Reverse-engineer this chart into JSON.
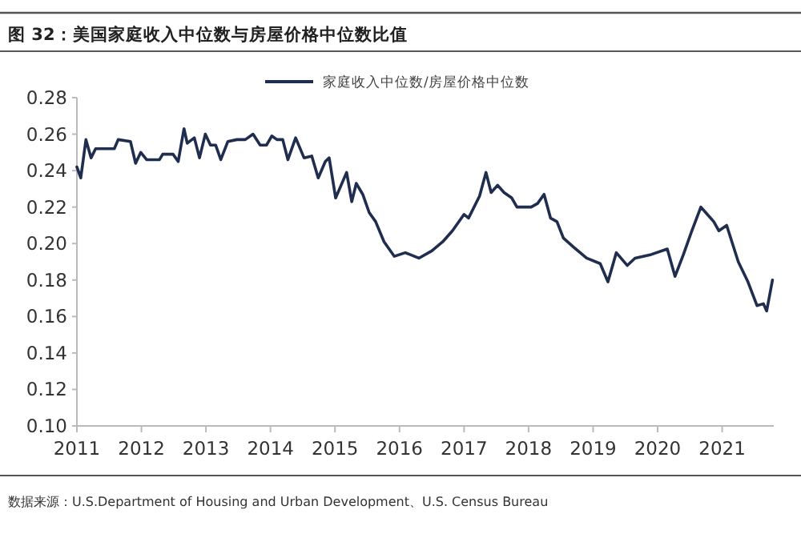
{
  "chart_data": {
    "type": "line",
    "title": "图 32：美国家庭收入中位数与房屋价格中位数比值",
    "annotations": [
      "数据来源：U.S.Department of Housing and Urban Development、U.S. Census Bureau"
    ],
    "legend": "top",
    "marker": "none",
    "line_style": "solid",
    "grid": false,
    "xlim": [
      2011,
      2021.8
    ],
    "xticks": [
      2011,
      2012,
      2013,
      2014,
      2015,
      2016,
      2017,
      2018,
      2019,
      2020,
      2021
    ],
    "ylim": [
      0.1,
      0.28
    ],
    "yticks": [
      {
        "value": 0.1,
        "label": "0.10"
      },
      {
        "value": 0.12,
        "label": "0.12"
      },
      {
        "value": 0.14,
        "label": "0.14"
      },
      {
        "value": 0.16,
        "label": "0.16"
      },
      {
        "value": 0.18,
        "label": "0.18"
      },
      {
        "value": 0.2,
        "label": "0.20"
      },
      {
        "value": 0.22,
        "label": "0.22"
      },
      {
        "value": 0.24,
        "label": "0.24"
      },
      {
        "value": 0.26,
        "label": "0.26"
      },
      {
        "value": 0.28,
        "label": "0.28"
      }
    ],
    "series": [
      {
        "name": "家庭收入中位数/房屋价格中位数",
        "color": "#1f2d4e",
        "x": [
          2011.0,
          2011.06,
          2011.14,
          2011.22,
          2011.29,
          2011.58,
          2011.64,
          2011.83,
          2011.91,
          2011.99,
          2012.08,
          2012.28,
          2012.33,
          2012.49,
          2012.57,
          2012.66,
          2012.71,
          2012.82,
          2012.9,
          2012.99,
          2013.07,
          2013.15,
          2013.23,
          2013.34,
          2013.48,
          2013.61,
          2013.73,
          2013.84,
          2013.94,
          2014.02,
          2014.1,
          2014.19,
          2014.27,
          2014.39,
          2014.52,
          2014.64,
          2014.74,
          2014.85,
          2014.91,
          2015.01,
          2015.18,
          2015.26,
          2015.33,
          2015.43,
          2015.53,
          2015.63,
          2015.76,
          2015.92,
          2016.09,
          2016.3,
          2016.5,
          2016.67,
          2016.82,
          2017.0,
          2017.07,
          2017.24,
          2017.34,
          2017.42,
          2017.52,
          2017.62,
          2017.74,
          2017.82,
          2018.04,
          2018.14,
          2018.24,
          2018.34,
          2018.44,
          2018.54,
          2018.7,
          2018.9,
          2019.11,
          2019.23,
          2019.36,
          2019.53,
          2019.65,
          2019.9,
          2020.15,
          2020.27,
          2020.4,
          2020.52,
          2020.67,
          2020.77,
          2020.87,
          2020.95,
          2021.07,
          2021.25,
          2021.4,
          2021.54,
          2021.64,
          2021.69,
          2021.78
        ],
        "values": [
          0.242,
          0.236,
          0.257,
          0.247,
          0.252,
          0.252,
          0.257,
          0.256,
          0.244,
          0.25,
          0.246,
          0.246,
          0.249,
          0.249,
          0.245,
          0.263,
          0.255,
          0.258,
          0.247,
          0.26,
          0.254,
          0.254,
          0.246,
          0.256,
          0.257,
          0.257,
          0.26,
          0.254,
          0.254,
          0.259,
          0.257,
          0.257,
          0.246,
          0.258,
          0.247,
          0.248,
          0.236,
          0.245,
          0.247,
          0.225,
          0.239,
          0.223,
          0.233,
          0.227,
          0.217,
          0.212,
          0.201,
          0.193,
          0.195,
          0.192,
          0.196,
          0.201,
          0.207,
          0.216,
          0.214,
          0.226,
          0.239,
          0.228,
          0.232,
          0.228,
          0.225,
          0.22,
          0.22,
          0.222,
          0.227,
          0.214,
          0.212,
          0.203,
          0.198,
          0.192,
          0.189,
          0.179,
          0.195,
          0.188,
          0.192,
          0.194,
          0.197,
          0.182,
          0.194,
          0.206,
          0.22,
          0.216,
          0.212,
          0.207,
          0.21,
          0.19,
          0.179,
          0.166,
          0.167,
          0.163,
          0.18
        ]
      }
    ]
  }
}
